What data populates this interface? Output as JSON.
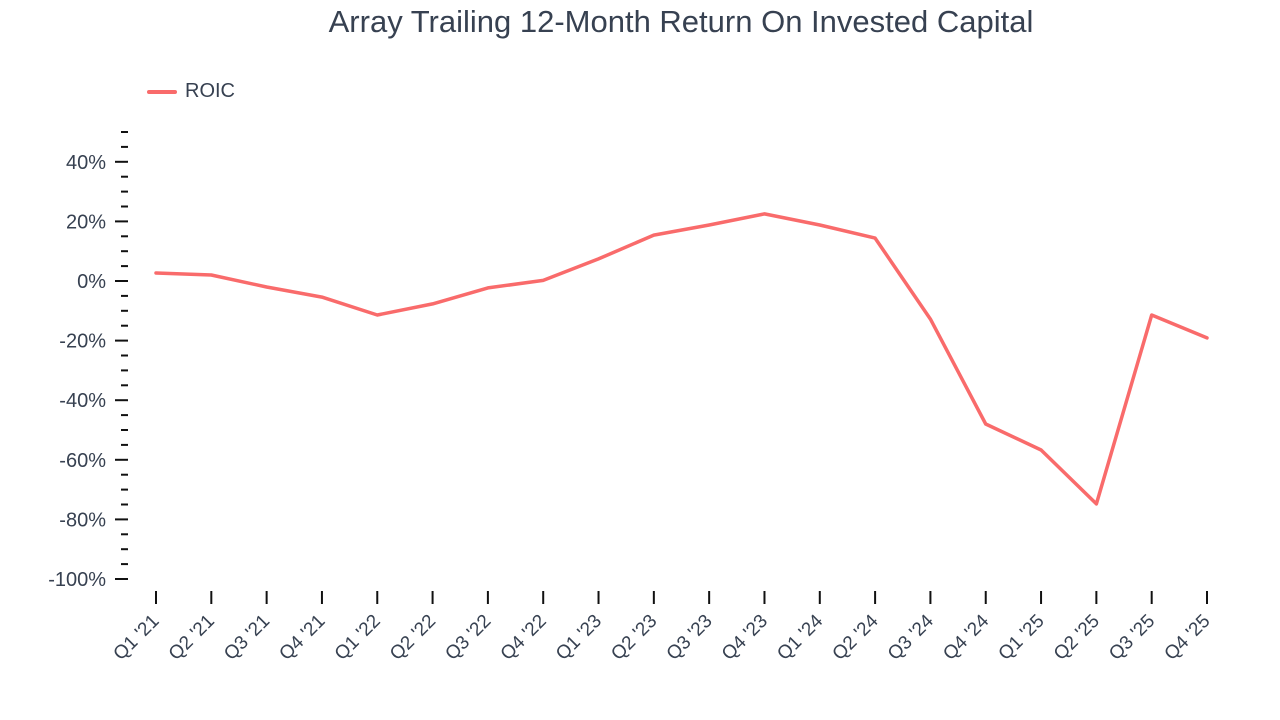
{
  "chart_data": {
    "type": "line",
    "title": "Array Trailing 12-Month Return On Invested Capital",
    "xlabel": "",
    "ylabel": "",
    "ylim": [
      -100,
      50
    ],
    "yticks": [
      "40%",
      "20%",
      "0%",
      "-20%",
      "-40%",
      "-60%",
      "-80%",
      "-100%"
    ],
    "ytick_values": [
      40,
      20,
      0,
      -20,
      -40,
      -60,
      -80,
      -100
    ],
    "grid": false,
    "legend_position": "top-left",
    "categories": [
      "Q1 '21",
      "Q2 '21",
      "Q3 '21",
      "Q4 '21",
      "Q1 '22",
      "Q2 '22",
      "Q3 '22",
      "Q4 '22",
      "Q1 '23",
      "Q2 '23",
      "Q3 '23",
      "Q4 '23",
      "Q1 '24",
      "Q2 '24",
      "Q3 '24",
      "Q4 '24",
      "Q1 '25",
      "Q2 '25",
      "Q3 '25",
      "Q4 '25"
    ],
    "series": [
      {
        "name": "ROIC",
        "color": "#f96b6b",
        "values": [
          2.7,
          2.0,
          -2.0,
          -5.4,
          -11.4,
          -7.7,
          -2.3,
          0.2,
          7.4,
          15.4,
          18.8,
          22.5,
          18.8,
          14.4,
          -12.8,
          -48.0,
          -56.7,
          -74.8,
          -11.4,
          -19.1
        ]
      }
    ]
  },
  "legend": {
    "label": "ROIC",
    "color": "#f96b6b"
  }
}
